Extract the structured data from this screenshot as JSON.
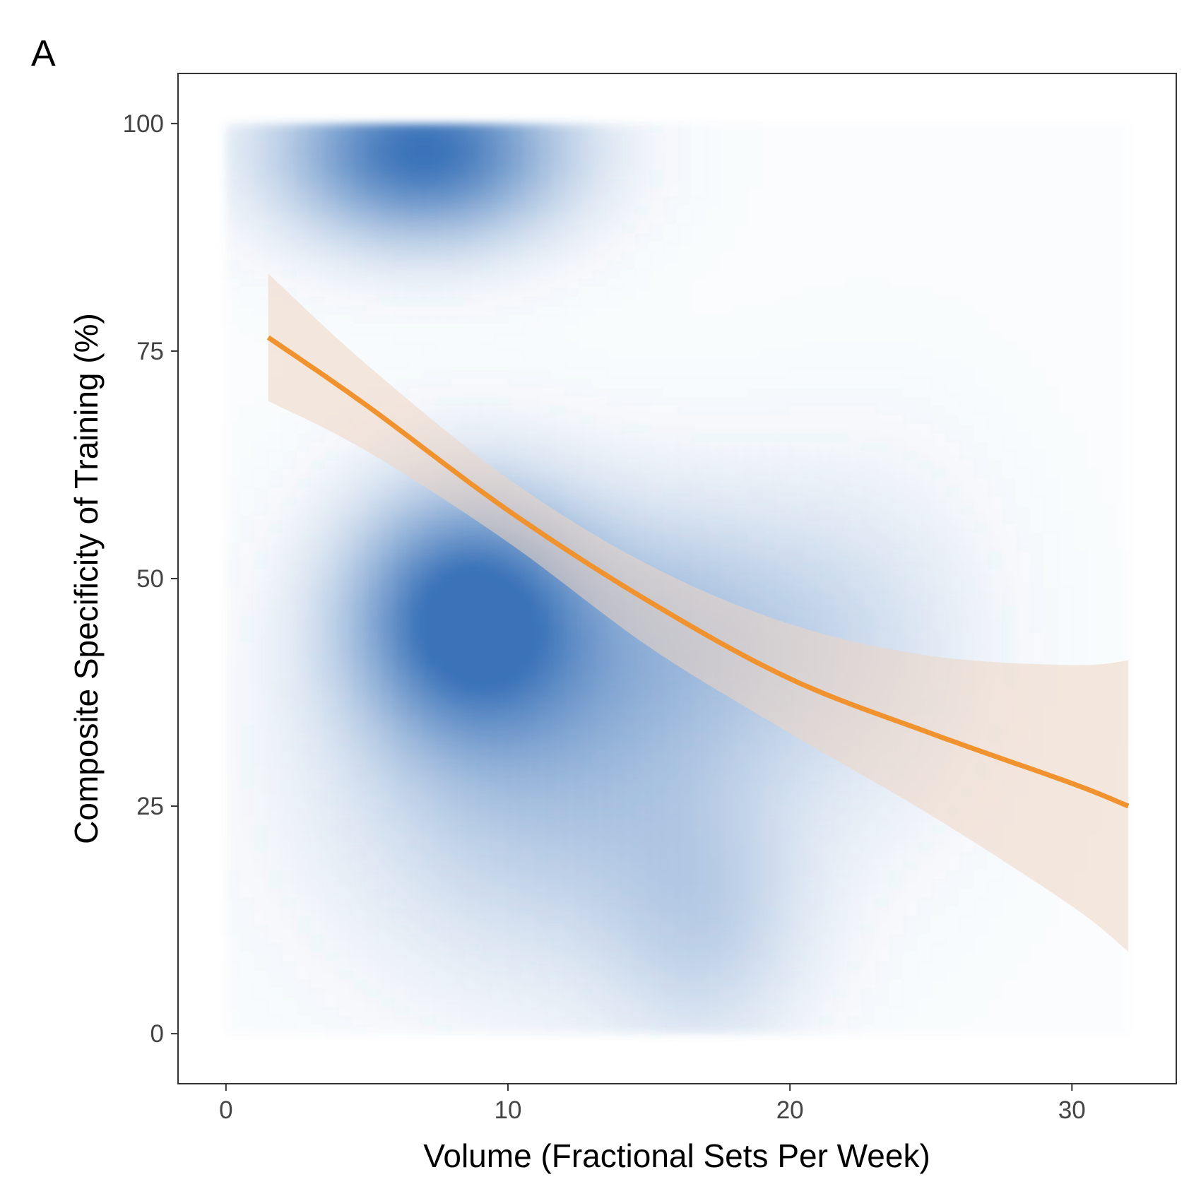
{
  "chart_data": {
    "type": "heatmap",
    "panel_label": "A",
    "xlabel": "Volume (Fractional Sets Per Week)",
    "ylabel": "Composite Specificity of Training (%)",
    "xlim": [
      -1.7,
      33.7
    ],
    "ylim": [
      -5.5,
      105.5
    ],
    "x_ticks": [
      0,
      10,
      20,
      30
    ],
    "y_ticks": [
      0,
      25,
      50,
      75,
      100
    ],
    "grid": false,
    "density": {
      "color": "#3A72B8",
      "x_range": [
        0,
        32
      ],
      "y_range": [
        0,
        100
      ],
      "peaks": [
        {
          "x": 7.0,
          "y": 97,
          "sx": 3.3,
          "sy": 6.5,
          "w": 1.0
        },
        {
          "x": 8.5,
          "y": 46,
          "sx": 2.8,
          "sy": 9.0,
          "w": 1.0
        },
        {
          "x": 11.5,
          "y": 28,
          "sx": 5.0,
          "sy": 14.0,
          "w": 0.35
        },
        {
          "x": 16.0,
          "y": 44,
          "sx": 4.5,
          "sy": 10.0,
          "w": 0.32
        },
        {
          "x": 17.0,
          "y": 12,
          "sx": 2.5,
          "sy": 10.0,
          "w": 0.22
        },
        {
          "x": 23.0,
          "y": 42,
          "sx": 3.0,
          "sy": 14.0,
          "w": 0.1
        }
      ]
    },
    "fit_line": {
      "color": "#F0922E",
      "x": [
        1.5,
        5,
        10,
        15,
        20,
        25,
        30,
        32
      ],
      "y": [
        76.5,
        69,
        57.5,
        47.5,
        39,
        33,
        27.5,
        25
      ],
      "ci_upper": [
        83.5,
        73.5,
        61,
        51.5,
        45,
        41.5,
        40.5,
        41
      ],
      "ci_lower": [
        69.5,
        64,
        54,
        42.5,
        33,
        24,
        14,
        9
      ],
      "ci_color": "#EFD5C2"
    }
  }
}
